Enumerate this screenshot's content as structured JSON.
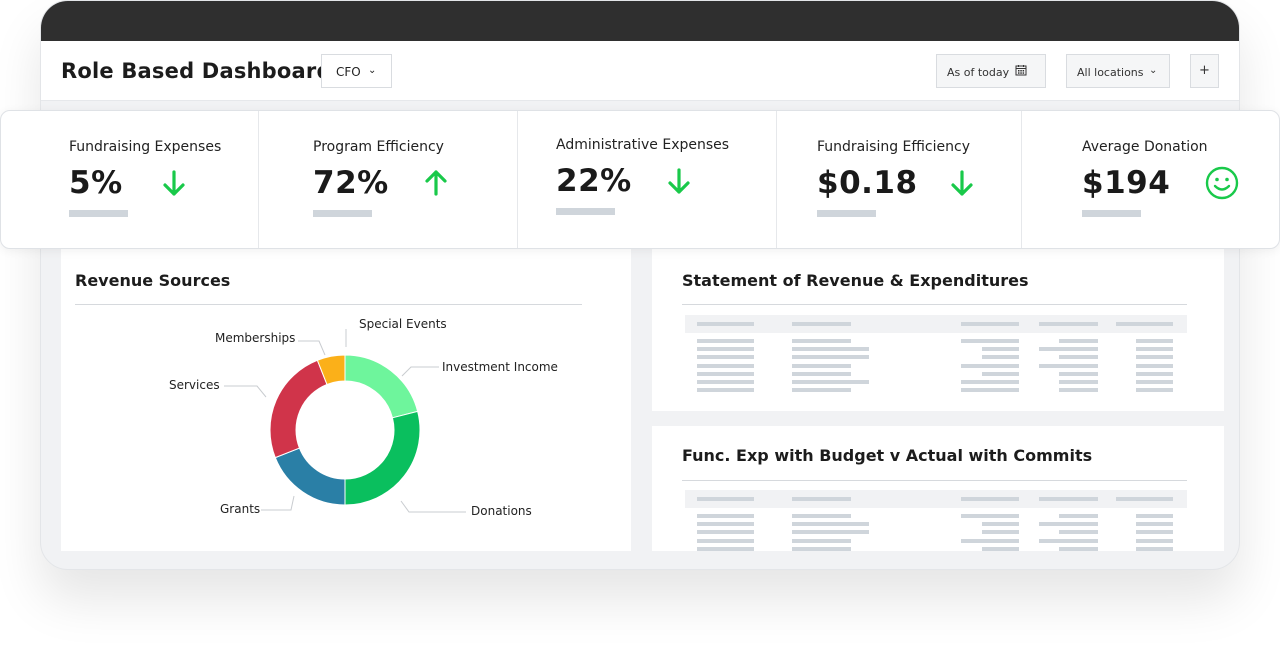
{
  "header": {
    "title": "Role Based Dashboard",
    "role_select": "CFO",
    "date_filter": "As of today",
    "location_filter": "All locations",
    "add_label": "+"
  },
  "kpis": [
    {
      "label": "Fundraising Expenses",
      "value": "5%",
      "trend": "down",
      "icon": "arrow-down-icon",
      "color": "#19c94a"
    },
    {
      "label": "Program Efficiency",
      "value": "72%",
      "trend": "up",
      "icon": "arrow-up-icon",
      "color": "#19c94a"
    },
    {
      "label": "Administrative Expenses",
      "value": "22%",
      "trend": "down",
      "icon": "arrow-down-icon",
      "color": "#19c94a"
    },
    {
      "label": "Fundraising Efficiency",
      "value": "$0.18",
      "trend": "down",
      "icon": "arrow-down-icon",
      "color": "#19c94a"
    },
    {
      "label": "Average Donation",
      "value": "$194",
      "trend": "neutral",
      "icon": "smiley-icon",
      "color": "#19c94a"
    }
  ],
  "revenue_panel": {
    "title": "Revenue Sources"
  },
  "statement_panel": {
    "title": "Statement of Revenue & Expenditures"
  },
  "func_panel": {
    "title": "Func. Exp with Budget v Actual with Commits"
  },
  "chart_data": {
    "type": "pie",
    "donut": true,
    "categories": [
      "Investment Income",
      "Donations",
      "Grants",
      "Services",
      "Memberships",
      "Special Events"
    ],
    "values": [
      21,
      29,
      19,
      25,
      6,
      0
    ],
    "colors": [
      "#6ef59c",
      "#0abf5e",
      "#2a7fa6",
      "#d0344a",
      "#fbb019",
      "#ffffff"
    ],
    "title": "",
    "legend": "outside-labels"
  }
}
